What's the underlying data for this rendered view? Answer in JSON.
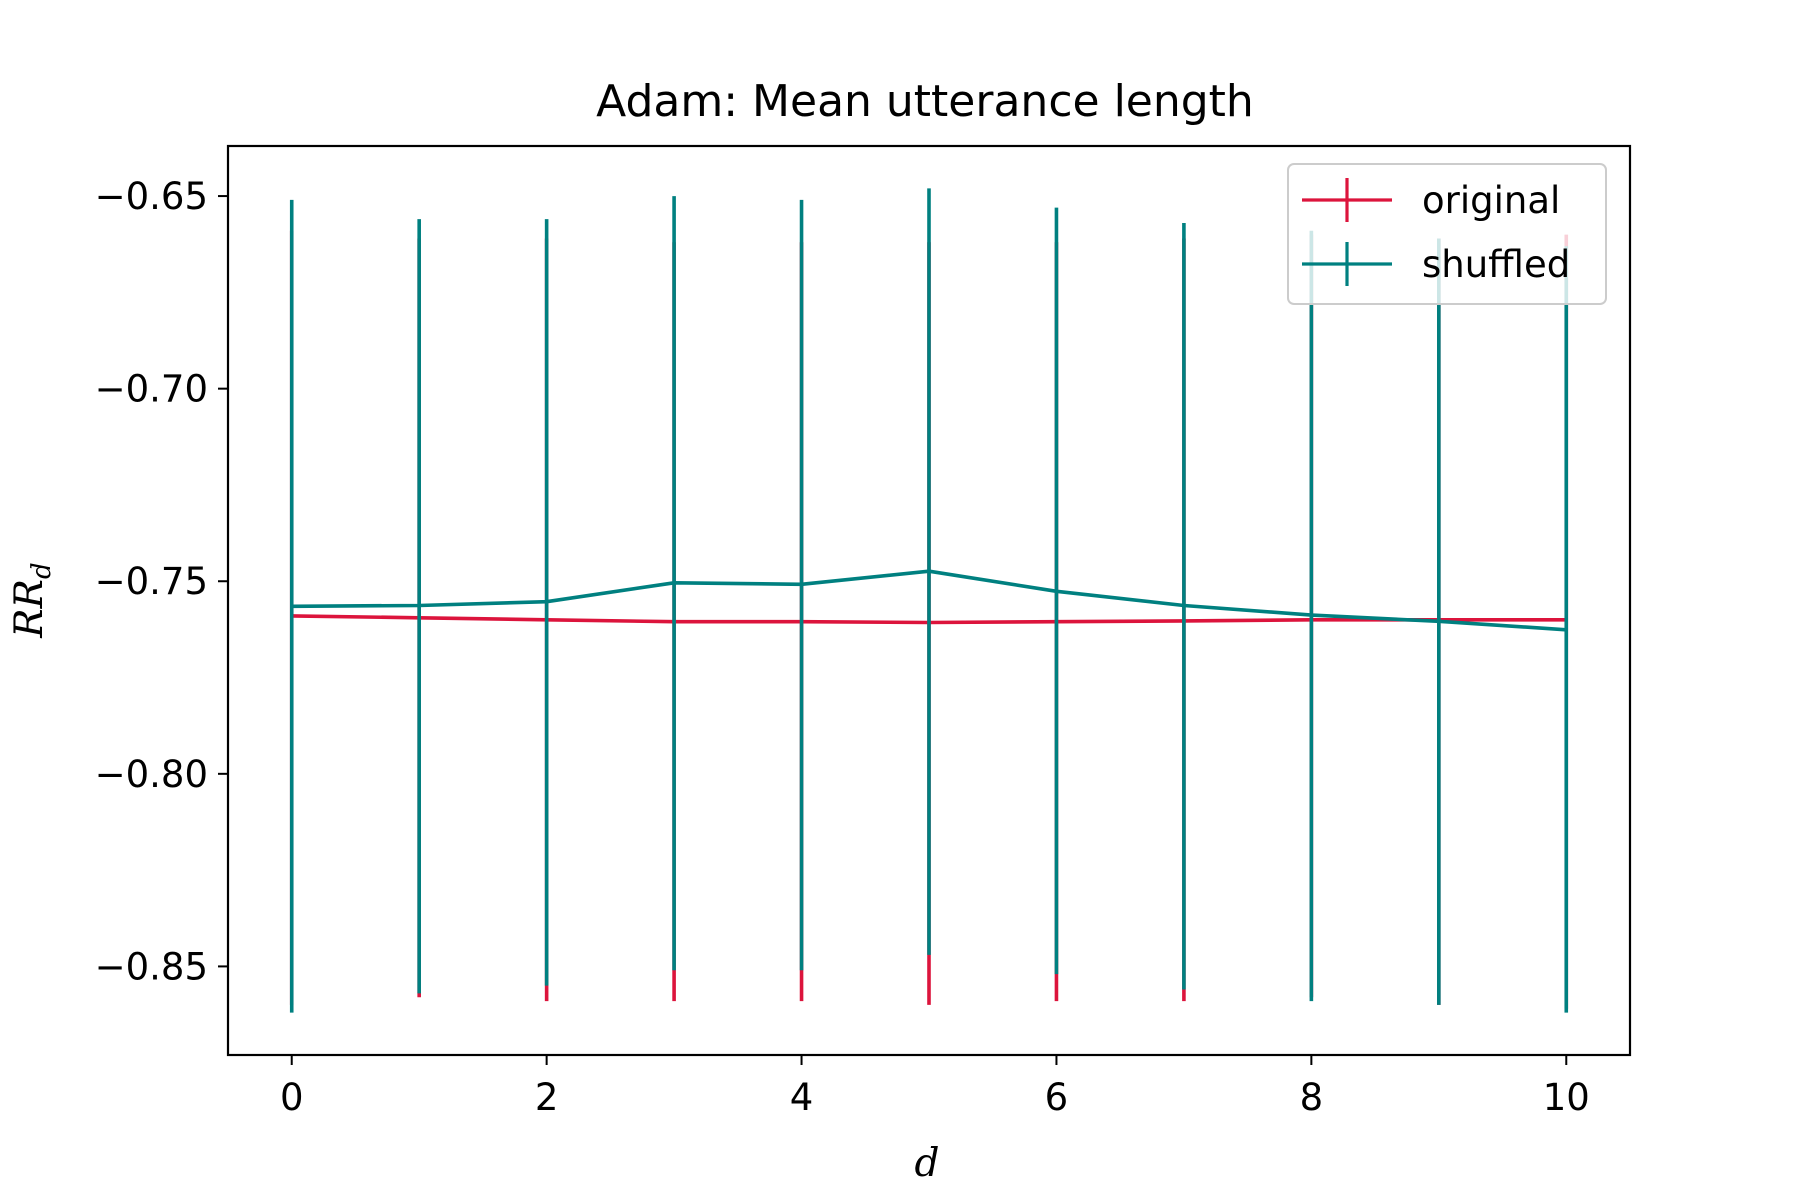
{
  "chart_data": {
    "type": "line",
    "title": "Adam: Mean utterance length",
    "xlabel": "d",
    "ylabel_main": "RR",
    "ylabel_sub": "d",
    "xlim": [
      -0.5,
      10.5
    ],
    "ylim": [
      -0.873,
      -0.637
    ],
    "xticks": [
      0,
      2,
      4,
      6,
      8,
      10
    ],
    "yticks": [
      -0.65,
      -0.7,
      -0.75,
      -0.8,
      -0.85
    ],
    "ytick_labels": [
      "−0.65",
      "−0.70",
      "−0.75",
      "−0.80",
      "−0.85"
    ],
    "xtick_labels": [
      "0",
      "2",
      "4",
      "6",
      "8",
      "10"
    ],
    "grid": false,
    "legend_position": "top-right",
    "x": [
      0,
      1,
      2,
      3,
      4,
      5,
      6,
      7,
      8,
      9,
      10
    ],
    "series": [
      {
        "name": "original",
        "color": "#dc143c",
        "values": [
          -0.759,
          -0.7595,
          -0.76,
          -0.7605,
          -0.7605,
          -0.7607,
          -0.7605,
          -0.7603,
          -0.76,
          -0.76,
          -0.76
        ],
        "err_low": [
          -0.86,
          -0.858,
          -0.859,
          -0.859,
          -0.859,
          -0.86,
          -0.859,
          -0.859,
          -0.858,
          -0.86,
          -0.861
        ],
        "err_high": [
          -0.659,
          -0.661,
          -0.661,
          -0.662,
          -0.662,
          -0.662,
          -0.662,
          -0.661,
          -0.66,
          -0.661,
          -0.66
        ]
      },
      {
        "name": "shuffled",
        "color": "#008080",
        "values": [
          -0.7565,
          -0.7563,
          -0.7553,
          -0.7504,
          -0.7508,
          -0.7474,
          -0.7526,
          -0.7563,
          -0.7588,
          -0.7604,
          -0.7626
        ],
        "err_low": [
          -0.862,
          -0.857,
          -0.855,
          -0.851,
          -0.851,
          -0.847,
          -0.852,
          -0.856,
          -0.859,
          -0.86,
          -0.862
        ],
        "err_high": [
          -0.651,
          -0.656,
          -0.656,
          -0.65,
          -0.651,
          -0.648,
          -0.653,
          -0.657,
          -0.659,
          -0.661,
          -0.663
        ]
      }
    ]
  }
}
